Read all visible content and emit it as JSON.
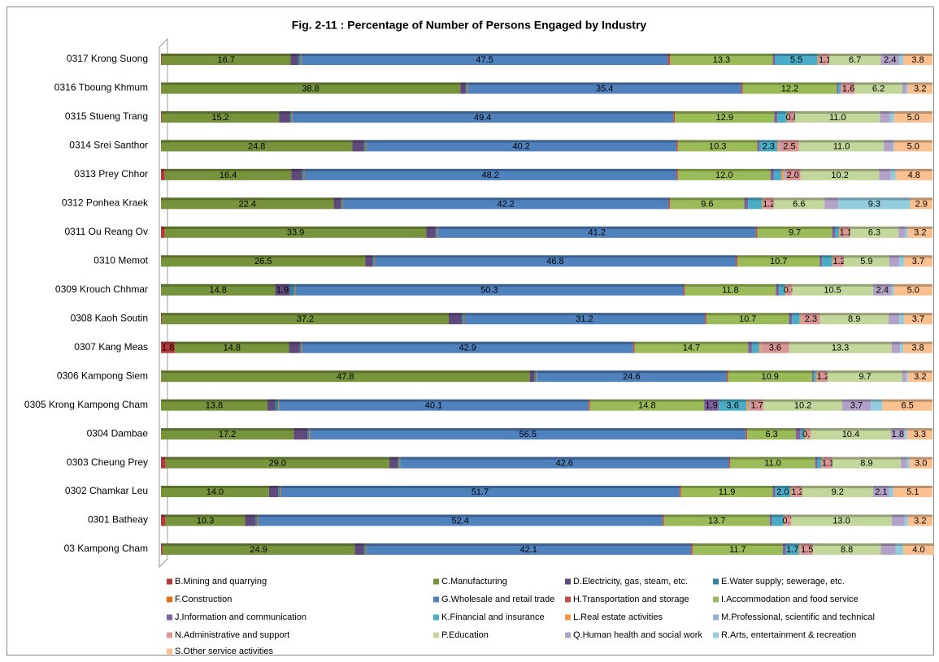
{
  "chart_data": {
    "type": "stacked_bar_horizontal",
    "title": "Fig. 2-11 : Percentage of Number of Persons Engaged by Industry",
    "categories": [
      "0317 Krong Suong",
      "0316 Tboung Khmum",
      "0315 Stueng Trang",
      "0314 Srei Santhor",
      "0313 Prey Chhor",
      "0312 Ponhea Kraek",
      "0311 Ou Reang Ov",
      "0310 Memot",
      "0309 Krouch Chhmar",
      "0308 Kaoh Soutin",
      "0307 Kang Meas",
      "0306 Kampong Siem",
      "0305 Krong Kampong Cham",
      "0304 Dambae",
      "0303 Cheung Prey",
      "0302 Chamkar Leu",
      "0301 Batheay",
      "03  Kampong Cham"
    ],
    "xlim": [
      0,
      100
    ],
    "series": [
      {
        "name": "B.Mining and quarrying",
        "color": "#b33b3b",
        "values": [
          0.1,
          0,
          0.1,
          0,
          0.5,
          0,
          0.5,
          0,
          0,
          0.1,
          1.8,
          0,
          0,
          0,
          0.6,
          0,
          0.6,
          0.2
        ],
        "value_labels": [
          null,
          null,
          null,
          null,
          null,
          null,
          null,
          null,
          null,
          null,
          "1.8",
          null,
          null,
          null,
          null,
          null,
          null,
          null
        ]
      },
      {
        "name": "C.Manufacturing",
        "color": "#77933c",
        "values": [
          16.7,
          38.8,
          15.2,
          24.8,
          16.4,
          22.4,
          33.9,
          26.5,
          14.8,
          37.2,
          14.8,
          47.8,
          13.8,
          17.2,
          29.0,
          14.0,
          10.3,
          24.9
        ],
        "value_labels": [
          "16.7",
          "38.8",
          "15.2",
          "24.8",
          "16.4",
          "22.4",
          "33.9",
          "26.5",
          "14.8",
          "37.2",
          "14.8",
          "47.8",
          "13.8",
          "17.2",
          "29.0",
          "14.0",
          "10.3",
          "24.9"
        ]
      },
      {
        "name": "D.Electricity, gas, steam, etc.",
        "color": "#604a7b",
        "values": [
          1.0,
          0.7,
          1.4,
          1.5,
          1.4,
          0.9,
          1.2,
          0.9,
          1.9,
          1.7,
          1.4,
          0.6,
          1.0,
          1.8,
          1.1,
          1.2,
          1.4,
          1.2
        ],
        "value_labels": [
          null,
          null,
          null,
          null,
          null,
          null,
          null,
          null,
          "1.9",
          null,
          null,
          null,
          null,
          null,
          null,
          null,
          null,
          null
        ]
      },
      {
        "name": "E.Water supply; sewerage, etc.",
        "color": "#31859c",
        "values": [
          0.3,
          0.2,
          0.2,
          0.2,
          0.2,
          0.2,
          0.2,
          0.2,
          0.6,
          0.2,
          0.2,
          0.2,
          0.4,
          0.2,
          0.2,
          0.2,
          0.2,
          0.2
        ]
      },
      {
        "name": "F.Construction",
        "color": "#e46c0a",
        "values": [
          0.1,
          0.1,
          0.1,
          0.1,
          0.1,
          0.1,
          0.1,
          0.1,
          0.1,
          0.1,
          0.1,
          0.1,
          0.1,
          0.1,
          0.1,
          0.1,
          0.1,
          0.1
        ]
      },
      {
        "name": "G.Wholesale and retail trade",
        "color": "#4f81bd",
        "values": [
          47.5,
          35.4,
          49.4,
          40.2,
          48.2,
          42.2,
          41.2,
          46.8,
          50.3,
          31.2,
          42.9,
          24.6,
          40.1,
          56.5,
          42.6,
          51.7,
          52.4,
          42.1
        ],
        "value_labels": [
          "47.5",
          "35.4",
          "49.4",
          "40.2",
          "48.2",
          "42.2",
          "41.2",
          "46.8",
          "50.3",
          "31.2",
          "42.9",
          "24.6",
          "40.1",
          "56.5",
          "42.6",
          "51.7",
          "52.4",
          "42.1"
        ]
      },
      {
        "name": "H.Transportation and storage",
        "color": "#c0504d",
        "values": [
          0.3,
          0.2,
          0.2,
          0.2,
          0.2,
          0.2,
          0.2,
          0.2,
          0.2,
          0.2,
          0.2,
          0.2,
          0.2,
          0.2,
          0.2,
          0.2,
          0.2,
          0.2
        ]
      },
      {
        "name": "I.Accommodation and food service",
        "color": "#9bbb59",
        "values": [
          13.3,
          12.2,
          12.9,
          10.3,
          12.0,
          9.6,
          9.7,
          10.7,
          11.8,
          10.7,
          14.7,
          10.9,
          14.8,
          6.3,
          11.0,
          11.9,
          13.7,
          11.7
        ],
        "value_labels": [
          "13.3",
          "12.2",
          "12.9",
          "10.3",
          "12.0",
          "9.6",
          "9.7",
          "10.7",
          "11.8",
          "10.7",
          "14.7",
          "10.9",
          "14.8",
          "6.3",
          "11.0",
          "11.9",
          "13.7",
          "11.7"
        ]
      },
      {
        "name": "J.Information and communication",
        "color": "#8064a2",
        "values": [
          0.3,
          0.2,
          0.4,
          0.3,
          0.4,
          0.5,
          0.4,
          0.3,
          0.4,
          0.4,
          0.5,
          0.2,
          1.9,
          0.6,
          0.3,
          0.3,
          0.3,
          0.4
        ],
        "value_labels": [
          null,
          null,
          null,
          null,
          null,
          null,
          null,
          null,
          null,
          null,
          null,
          null,
          "1.9",
          null,
          null,
          null,
          null,
          null
        ]
      },
      {
        "name": "K.Financial and insurance",
        "color": "#4bacc6",
        "values": [
          5.5,
          0.3,
          1.2,
          2.3,
          1.0,
          1.8,
          0.5,
          1.3,
          0.8,
          1.0,
          0.9,
          0.3,
          3.6,
          0.5,
          0.5,
          2.0,
          1.5,
          1.7
        ],
        "value_labels": [
          "5.5",
          null,
          null,
          "2.3",
          null,
          null,
          null,
          null,
          null,
          null,
          null,
          null,
          "3.6",
          null,
          null,
          "2.0",
          null,
          "1.7"
        ]
      },
      {
        "name": "L.Real estate activities",
        "color": "#f79646",
        "values": [
          0.2,
          0.1,
          0.2,
          0.2,
          0.3,
          0.2,
          0.2,
          0.2,
          0.2,
          0.2,
          0.2,
          0.2,
          0.3,
          0.2,
          0.2,
          0.2,
          0.2,
          0.2
        ]
      },
      {
        "name": "M.Professional, scientific and technical",
        "color": "#95b3d7",
        "values": [
          0.2,
          0.1,
          0.1,
          0.1,
          0.2,
          0.1,
          0.1,
          0.1,
          0.1,
          0.1,
          0.1,
          0.1,
          0.2,
          0.1,
          0.1,
          0.1,
          0.1,
          0.1
        ]
      },
      {
        "name": "N.Administrative and support",
        "color": "#d99694",
        "values": [
          1.1,
          1.6,
          0.8,
          2.5,
          2.0,
          1.2,
          1.1,
          1.2,
          0.6,
          2.3,
          3.6,
          1.2,
          1.7,
          0.5,
          1.1,
          1.2,
          0.7,
          1.5
        ],
        "value_labels": [
          "1.1",
          "1.6",
          "0.8",
          "2.5",
          "2.0",
          "1.2",
          "1.1",
          "1.2",
          "0.6",
          "2.3",
          "3.6",
          "1.2",
          "1.7",
          "0.5",
          "1.1",
          "1.2",
          "0.7",
          "1.5"
        ]
      },
      {
        "name": "P.Education",
        "color": "#c3d69b",
        "values": [
          6.7,
          6.2,
          11.0,
          11.0,
          10.2,
          6.6,
          6.3,
          5.9,
          10.5,
          8.9,
          13.3,
          9.7,
          10.2,
          10.4,
          8.9,
          9.2,
          13.0,
          8.8
        ],
        "value_labels": [
          "6.7",
          "6.2",
          "11.0",
          "11.0",
          "10.2",
          "6.6",
          "6.3",
          "5.9",
          "10.5",
          "8.9",
          "13.3",
          "9.7",
          "10.2",
          "10.4",
          "8.9",
          "9.2",
          "13.0",
          "8.8"
        ]
      },
      {
        "name": "Q.Human health and social work",
        "color": "#b3a2c7",
        "values": [
          2.4,
          0.5,
          1.3,
          1.2,
          1.5,
          1.8,
          0.9,
          1.3,
          2.4,
          1.4,
          1.1,
          0.5,
          3.7,
          1.8,
          0.8,
          2.1,
          1.7,
          1.9
        ],
        "value_labels": [
          "2.4",
          null,
          null,
          null,
          null,
          null,
          null,
          null,
          "2.4",
          null,
          null,
          null,
          "3.7",
          "1.8",
          null,
          "2.1",
          null,
          null
        ]
      },
      {
        "name": "R.Arts, entertainment & recreation",
        "color": "#93cddd",
        "values": [
          0.5,
          0.2,
          0.5,
          0.1,
          0.6,
          9.3,
          0.3,
          0.6,
          0.3,
          0.6,
          0.4,
          0.2,
          1.5,
          0.3,
          0.3,
          0.5,
          0.4,
          1.0
        ],
        "value_labels": [
          null,
          null,
          null,
          null,
          null,
          "9.3",
          null,
          null,
          null,
          null,
          null,
          null,
          null,
          null,
          null,
          null,
          null,
          null
        ]
      },
      {
        "name": "S.Other service activities",
        "color": "#fac090",
        "values": [
          3.8,
          3.2,
          5.0,
          5.0,
          4.8,
          2.9,
          3.2,
          3.7,
          5.0,
          3.7,
          3.8,
          3.2,
          6.5,
          3.3,
          3.0,
          5.1,
          3.2,
          4.0
        ],
        "value_labels": [
          "3.8",
          "3.2",
          "5.0",
          "5.0",
          "4.8",
          "2.9",
          "3.2",
          "3.7",
          "5.0",
          "3.7",
          "3.8",
          "3.2",
          "6.5",
          "3.3",
          "3.0",
          "5.1",
          "3.2",
          "4.0"
        ]
      }
    ]
  }
}
